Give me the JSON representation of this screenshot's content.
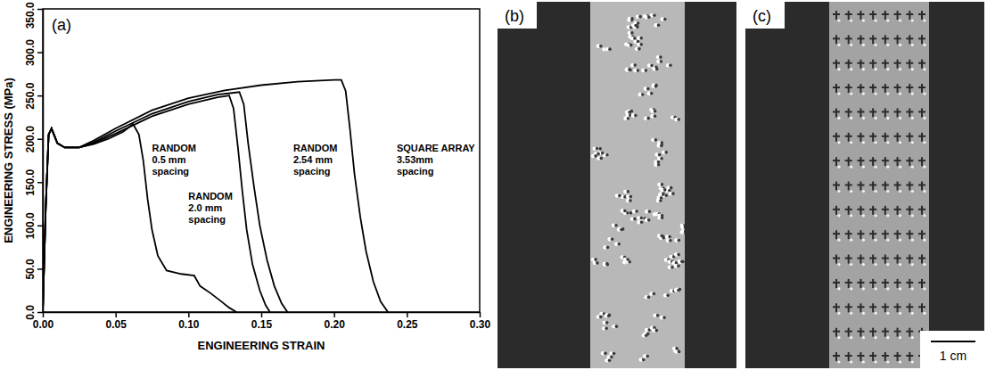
{
  "chart_data": {
    "type": "line",
    "panel_label": "(a)",
    "x_label": "ENGINEERING STRAIN",
    "y_label": "ENGINEERING STRESS (MPa)",
    "xlim": [
      0,
      0.3
    ],
    "ylim": [
      0,
      350
    ],
    "xticks": [
      {
        "value": 0,
        "label": "0.00"
      },
      {
        "value": 0.05,
        "label": "0.05"
      },
      {
        "value": 0.1,
        "label": "0.10"
      },
      {
        "value": 0.15,
        "label": "0.15"
      },
      {
        "value": 0.2,
        "label": "0.20"
      },
      {
        "value": 0.25,
        "label": "0.25"
      },
      {
        "value": 0.3,
        "label": "0.30"
      }
    ],
    "yticks": [
      {
        "value": 0,
        "label": "0.0"
      },
      {
        "value": 50,
        "label": "50.0"
      },
      {
        "value": 100,
        "label": "100.0"
      },
      {
        "value": 150,
        "label": "150.0"
      },
      {
        "value": 200,
        "label": "200.0"
      },
      {
        "value": 250,
        "label": "250.0"
      },
      {
        "value": 300,
        "label": "300.0"
      },
      {
        "value": 350,
        "label": "350.0"
      }
    ],
    "series": [
      {
        "color": "#000000",
        "x": [
          0,
          0.002,
          0.004,
          0.006,
          0.01,
          0.015,
          0.025,
          0.035,
          0.045,
          0.055,
          0.062,
          0.066,
          0.069,
          0.072,
          0.075,
          0.079,
          0.085,
          0.095,
          0.104,
          0.108,
          0.115,
          0.122,
          0.128,
          0.133
        ],
        "values": [
          0,
          120,
          205,
          212,
          195,
          190,
          190,
          194,
          200,
          208,
          217,
          205,
          175,
          130,
          95,
          65,
          48,
          44,
          42,
          30,
          22,
          13,
          5,
          0
        ]
      },
      {
        "color": "#000000",
        "x": [
          0,
          0.002,
          0.004,
          0.006,
          0.01,
          0.015,
          0.025,
          0.035,
          0.05,
          0.075,
          0.1,
          0.12,
          0.128,
          0.131,
          0.134,
          0.137,
          0.14,
          0.144,
          0.149,
          0.153,
          0.156
        ],
        "values": [
          0,
          120,
          205,
          212,
          195,
          190,
          190,
          195,
          206,
          226,
          240,
          248,
          250,
          235,
          190,
          140,
          95,
          55,
          25,
          8,
          0
        ]
      },
      {
        "color": "#000000",
        "x": [
          0,
          0.002,
          0.004,
          0.006,
          0.01,
          0.015,
          0.025,
          0.035,
          0.05,
          0.075,
          0.1,
          0.12,
          0.135,
          0.138,
          0.141,
          0.145,
          0.149,
          0.154,
          0.159,
          0.164,
          0.168
        ],
        "values": [
          0,
          120,
          205,
          212,
          195,
          190,
          190,
          196,
          209,
          229,
          243,
          251,
          254,
          240,
          195,
          145,
          100,
          60,
          30,
          10,
          0
        ]
      },
      {
        "color": "#000000",
        "x": [
          0,
          0.002,
          0.004,
          0.006,
          0.01,
          0.015,
          0.025,
          0.035,
          0.05,
          0.075,
          0.1,
          0.125,
          0.15,
          0.175,
          0.2,
          0.205,
          0.208,
          0.211,
          0.214,
          0.218,
          0.222,
          0.227,
          0.232,
          0.237
        ],
        "values": [
          0,
          120,
          205,
          212,
          195,
          190,
          190,
          198,
          212,
          233,
          247,
          256,
          262,
          266,
          268,
          268,
          255,
          210,
          160,
          110,
          70,
          35,
          12,
          0
        ]
      }
    ],
    "annotations": [
      {
        "lines": [
          "RANDOM",
          "0.5 mm",
          "spacing"
        ],
        "x": 0.075,
        "y": 185
      },
      {
        "lines": [
          "RANDOM",
          "2.0 mm",
          "spacing"
        ],
        "x": 0.1,
        "y": 130
      },
      {
        "lines": [
          "RANDOM",
          "2.54 mm",
          "spacing"
        ],
        "x": 0.172,
        "y": 185
      },
      {
        "lines": [
          "SQUARE ARRAY",
          "3.53mm",
          "spacing"
        ],
        "x": 0.243,
        "y": 185
      }
    ]
  },
  "panels": [
    {
      "label": "(b)"
    },
    {
      "label": "(c)",
      "scale_bar": "1 cm"
    }
  ]
}
